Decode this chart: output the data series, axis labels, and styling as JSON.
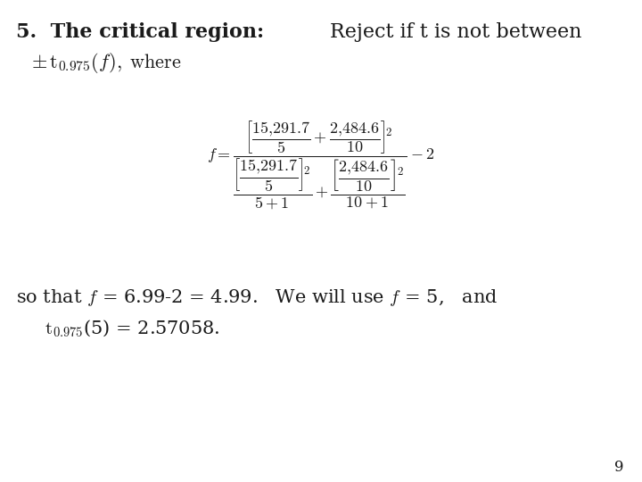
{
  "bg_color": "#ffffff",
  "text_color": "#1a1a1a",
  "page_num": "9",
  "title1_bold": "5.  The critical region:",
  "title1_right": "Reject if t is not between",
  "fs_title": 16,
  "fs_body": 15,
  "fs_formula": 13,
  "fs_page": 12
}
